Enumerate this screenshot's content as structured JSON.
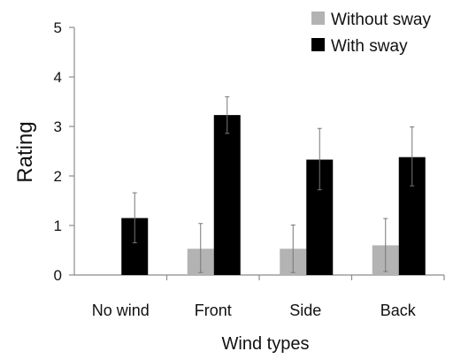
{
  "chart_data": {
    "type": "bar",
    "title": "",
    "xlabel": "Wind types",
    "ylabel": "Rating",
    "ylim": [
      0,
      5
    ],
    "yticks": [
      "0",
      "1",
      "2",
      "3",
      "4",
      "5"
    ],
    "grid": false,
    "legend_position": "top-right",
    "categories": [
      "No wind",
      "Front",
      "Side",
      "Back"
    ],
    "series": [
      {
        "name": "Without sway",
        "color": "#b3b3b3",
        "values": [
          0,
          0.53,
          0.53,
          0.6
        ],
        "error_low": [
          0,
          0.05,
          0.05,
          0.07
        ],
        "error_high": [
          0,
          1.04,
          1.01,
          1.14
        ]
      },
      {
        "name": "With sway",
        "color": "#000000",
        "values": [
          1.15,
          3.23,
          2.33,
          2.38
        ],
        "error_low": [
          0.65,
          2.86,
          1.72,
          1.8
        ],
        "error_high": [
          1.66,
          3.6,
          2.96,
          2.99
        ]
      }
    ]
  }
}
